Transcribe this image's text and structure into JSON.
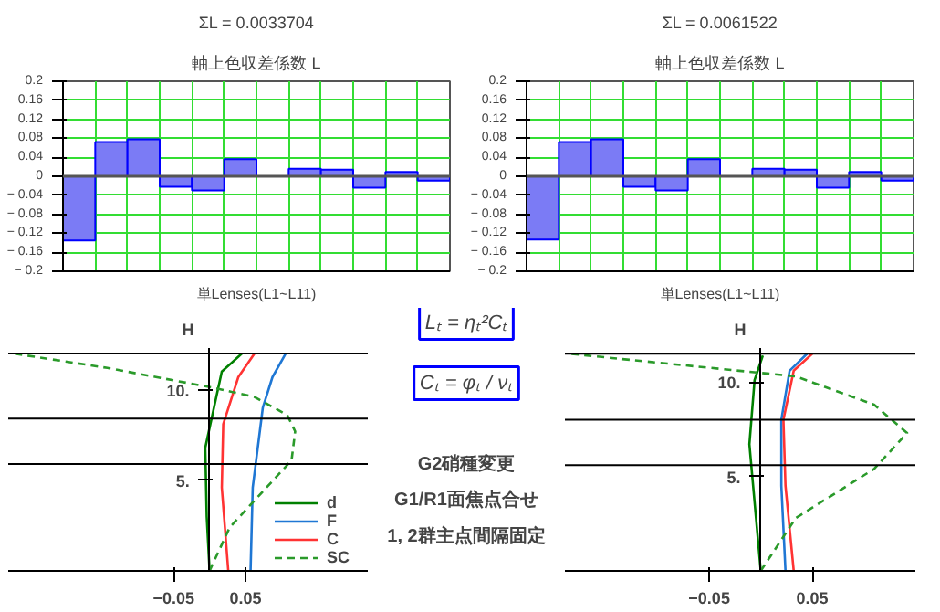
{
  "chart_data": [
    {
      "type": "bar",
      "title": "ΣL = 0.0033704",
      "subtitle": "軸上色収差係数 L",
      "xlabel": "単Lenses(L1~L11)",
      "categories": [
        null,
        null,
        null,
        null,
        null,
        null,
        null,
        null,
        null,
        null,
        null,
        null
      ],
      "values": [
        -0.135,
        0.072,
        0.078,
        -0.022,
        -0.03,
        0.036,
        null,
        0.016,
        0.014,
        -0.024,
        0.009,
        -0.009
      ],
      "color": "#7b7bf5",
      "ylim": [
        -0.2,
        0.2
      ],
      "yticks": [
        {
          "value": -0.2,
          "label": "− 0.2"
        },
        {
          "value": -0.16,
          "label": "− 0.16"
        },
        {
          "value": -0.12,
          "label": "− 0.12"
        },
        {
          "value": -0.08,
          "label": "− 0.08"
        },
        {
          "value": -0.04,
          "label": "− 0.04"
        },
        0,
        0.04,
        0.08,
        0.12,
        0.16,
        0.2
      ],
      "grid": true,
      "tick_labels": "y"
    },
    {
      "type": "bar",
      "title": "ΣL = 0.0061522",
      "subtitle": "軸上色収差係数 L",
      "xlabel": "単Lenses(L1~L11)",
      "categories": [
        null,
        null,
        null,
        null,
        null,
        null,
        null,
        null,
        null,
        null,
        null,
        null
      ],
      "values": [
        -0.133,
        0.072,
        0.078,
        -0.022,
        -0.03,
        0.036,
        null,
        0.016,
        0.014,
        -0.024,
        0.009,
        -0.009
      ],
      "color": "#7b7bf5",
      "ylim": [
        -0.2,
        0.2
      ],
      "yticks": [
        {
          "value": -0.2,
          "label": "− 0.2"
        },
        {
          "value": -0.16,
          "label": "− 0.16"
        },
        {
          "value": -0.12,
          "label": "− 0.12"
        },
        {
          "value": -0.08,
          "label": "− 0.08"
        },
        {
          "value": -0.04,
          "label": "− 0.04"
        },
        0,
        0.04,
        0.08,
        0.12,
        0.16,
        0.2
      ],
      "grid": true,
      "tick_labels": "y"
    },
    {
      "type": "line",
      "ylabel": "H",
      "xlim": [
        -0.28,
        0.22
      ],
      "ylim": [
        0,
        12.3
      ],
      "xticks": [
        {
          "value": -0.05,
          "label": "−0.05"
        },
        0.05
      ],
      "yticks": [
        {
          "value": 5,
          "label": "5."
        },
        {
          "value": 10,
          "label": "10."
        }
      ],
      "legend": "bottom right",
      "grid": false,
      "ref_lines": [
        {
          "axis": "y",
          "value": 12
        },
        {
          "axis": "y",
          "value": 8.4
        },
        {
          "axis": "y",
          "value": 5.9
        }
      ],
      "series": [
        {
          "name": "d",
          "color": "#008000",
          "line_style": "solid",
          "x": [
            0,
            -0.004,
            -0.006,
            0.017,
            0.045
          ],
          "values": [
            0,
            3,
            6.8,
            11,
            12
          ]
        },
        {
          "name": "F",
          "color": "#1f77d4",
          "line_style": "solid",
          "x": [
            0.057,
            0.06,
            0.074,
            0.0875,
            0.106
          ],
          "values": [
            0,
            4.6,
            9,
            10.7,
            12
          ]
        },
        {
          "name": "C",
          "color": "#ff3333",
          "line_style": "solid",
          "x": [
            0.026,
            0.017,
            0.019,
            0.04,
            0.0625
          ],
          "values": [
            0,
            4.6,
            8.1,
            10.7,
            12
          ]
        },
        {
          "name": "SC",
          "color": "#2a9a2a",
          "line_style": "dashed",
          "x": [
            0,
            0.028,
            0.114,
            0.119,
            0.108,
            0.0625,
            0.006,
            -0.142,
            -0.273
          ],
          "values": [
            0,
            2.4,
            6.1,
            7.7,
            8.6,
            9.6,
            10.1,
            11.2,
            12
          ]
        }
      ]
    },
    {
      "type": "other",
      "annotations": [
        "Lₜ = ηₜ²Cₜ",
        "Cₜ = φₜ / νₜ",
        "G2硝種変更",
        "G1/R1面焦点合せ",
        "1, 2群主点間隔固定"
      ]
    },
    {
      "type": "line",
      "ylabel": "H",
      "xlim": [
        -0.19,
        0.15
      ],
      "ylim": [
        0,
        11.8
      ],
      "xticks": [
        {
          "value": -0.05,
          "label": "−0.05"
        },
        0.05
      ],
      "yticks": [
        {
          "value": 5,
          "label": "5."
        },
        {
          "value": 10,
          "label": "10."
        }
      ],
      "grid": false,
      "ref_lines": [
        {
          "axis": "y",
          "value": 11.5
        },
        {
          "axis": "y",
          "value": 8.0
        },
        {
          "axis": "y",
          "value": 5.6
        }
      ],
      "series": [
        {
          "color": "#008000",
          "line_style": "solid",
          "x": [
            0,
            -0.011,
            -0.006,
            0.002
          ],
          "values": [
            0,
            6.7,
            10.1,
            11.4
          ]
        },
        {
          "color": "#1f77d4",
          "line_style": "solid",
          "x": [
            0.024,
            0.02,
            0.02,
            0.028,
            0.045
          ],
          "values": [
            0,
            4.5,
            8,
            10.6,
            11.5
          ]
        },
        {
          "color": "#ff3333",
          "line_style": "solid",
          "x": [
            0.032,
            0.024,
            0.022,
            0.032,
            0.05
          ],
          "values": [
            0,
            4.5,
            8,
            10.6,
            11.5
          ]
        },
        {
          "color": "#2a9a2a",
          "line_style": "dashed",
          "x": [
            0,
            0.034,
            0.11,
            0.142,
            0.11,
            0.034,
            -0.095,
            -0.186
          ],
          "values": [
            0,
            2.8,
            5.4,
            7.3,
            8.8,
            10.3,
            11,
            11.5
          ]
        }
      ]
    }
  ]
}
